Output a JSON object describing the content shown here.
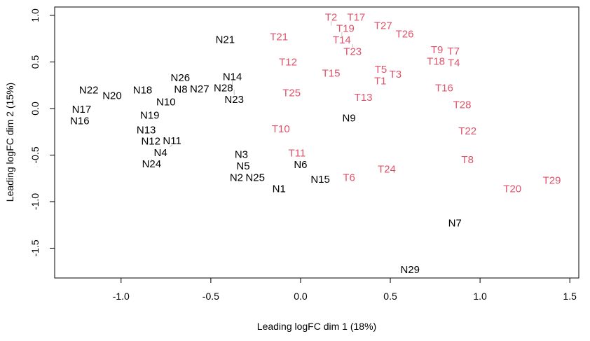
{
  "chart_data": {
    "type": "scatter",
    "marker": "text-labels",
    "xlabel": "Leading logFC dim 1 (18%)",
    "ylabel": "Leading logFC dim 2 (15%)",
    "xlim": [
      -1.37,
      1.55
    ],
    "ylim": [
      -1.82,
      1.09
    ],
    "xticks": [
      -1.0,
      -0.5,
      0.0,
      0.5,
      1.0,
      1.5
    ],
    "xtick_labels": [
      "-1.0",
      "-0.5",
      "0.0",
      "0.5",
      "1.0",
      "1.5"
    ],
    "yticks": [
      -1.5,
      -1.0,
      -0.5,
      0.0,
      0.5,
      1.0
    ],
    "ytick_labels": [
      "-1.5",
      "-1.0",
      "-0.5",
      "0.0",
      "0.5",
      "1.0"
    ],
    "grid": false,
    "colors": {
      "N": "#000000",
      "T": "#DF536B"
    },
    "series": [
      {
        "group": "N",
        "points": [
          {
            "label": "N1",
            "x": -0.12,
            "y": -0.86
          },
          {
            "label": "N2",
            "x": -0.35,
            "y": -0.74
          },
          {
            "label": "N3",
            "x": -0.33,
            "y": -0.52
          },
          {
            "label": "N4",
            "x": -0.78,
            "y": -0.44
          },
          {
            "label": "N5",
            "x": -0.32,
            "y": -0.59
          },
          {
            "label": "N6",
            "x": 0.0,
            "y": -0.59
          },
          {
            "label": "N7",
            "x": 0.86,
            "y": -1.23
          },
          {
            "label": "N8",
            "x": -0.66,
            "y": 0.25
          },
          {
            "label": "N9",
            "x": 0.27,
            "y": -0.1
          },
          {
            "label": "N10",
            "x": -0.75,
            "y": 0.07
          },
          {
            "label": "N11",
            "x": -0.73,
            "y": -0.41
          },
          {
            "label": "N12",
            "x": -0.82,
            "y": -0.38
          },
          {
            "label": "N13",
            "x": -0.86,
            "y": -0.23
          },
          {
            "label": "N14",
            "x": -0.38,
            "y": 0.2
          },
          {
            "label": "N15",
            "x": 0.11,
            "y": -0.76
          },
          {
            "label": "N16",
            "x": -1.23,
            "y": -0.12
          },
          {
            "label": "N17",
            "x": -1.22,
            "y": -0.02
          },
          {
            "label": "N18",
            "x": -0.88,
            "y": 0.2
          },
          {
            "label": "N19",
            "x": -0.84,
            "y": -0.07
          },
          {
            "label": "N20",
            "x": -1.05,
            "y": 0.14
          },
          {
            "label": "N21",
            "x": -0.42,
            "y": 0.74
          },
          {
            "label": "N22",
            "x": -1.18,
            "y": 0.2
          },
          {
            "label": "N23",
            "x": -0.37,
            "y": 0.2
          },
          {
            "label": "N24",
            "x": -0.83,
            "y": -0.54
          },
          {
            "label": "N25",
            "x": -0.26,
            "y": -0.74
          },
          {
            "label": "N26",
            "x": -0.67,
            "y": 0.29
          },
          {
            "label": "N27",
            "x": -0.57,
            "y": 0.21
          },
          {
            "label": "N28",
            "x": -0.43,
            "y": 0.26
          },
          {
            "label": "N29",
            "x": 0.61,
            "y": -1.73
          }
        ]
      },
      {
        "group": "T",
        "points": [
          {
            "label": "T1",
            "x": 0.45,
            "y": 0.34
          },
          {
            "label": "T2",
            "x": 0.17,
            "y": 0.89
          },
          {
            "label": "T3",
            "x": 0.52,
            "y": 0.37
          },
          {
            "label": "T4",
            "x": 0.84,
            "y": 0.52
          },
          {
            "label": "T5",
            "x": 0.45,
            "y": 0.38
          },
          {
            "label": "T6",
            "x": 0.27,
            "y": -0.74
          },
          {
            "label": "T7",
            "x": 0.85,
            "y": 0.59
          },
          {
            "label": "T8",
            "x": 0.93,
            "y": -0.55
          },
          {
            "label": "T9",
            "x": 0.76,
            "y": 0.62
          },
          {
            "label": "T10",
            "x": -0.11,
            "y": -0.22
          },
          {
            "label": "T11",
            "x": -0.02,
            "y": -0.49
          },
          {
            "label": "T12",
            "x": -0.07,
            "y": 0.5
          },
          {
            "label": "T13",
            "x": 0.35,
            "y": 0.12
          },
          {
            "label": "T14",
            "x": 0.23,
            "y": 0.82
          },
          {
            "label": "T15",
            "x": 0.17,
            "y": 0.38
          },
          {
            "label": "T16",
            "x": 0.8,
            "y": 0.22
          },
          {
            "label": "T17",
            "x": 0.31,
            "y": 0.94
          },
          {
            "label": "T18",
            "x": 0.77,
            "y": 0.52
          },
          {
            "label": "T19",
            "x": 0.25,
            "y": 0.83
          },
          {
            "label": "T20",
            "x": 1.18,
            "y": -0.86
          },
          {
            "label": "T21",
            "x": -0.12,
            "y": 0.77
          },
          {
            "label": "T22",
            "x": 0.93,
            "y": -0.24
          },
          {
            "label": "T23",
            "x": 0.29,
            "y": 0.69
          },
          {
            "label": "T24",
            "x": 0.48,
            "y": -0.65
          },
          {
            "label": "T25",
            "x": -0.05,
            "y": 0.17
          },
          {
            "label": "T26",
            "x": 0.58,
            "y": 0.8
          },
          {
            "label": "T27",
            "x": 0.46,
            "y": 0.89
          },
          {
            "label": "T28",
            "x": 0.9,
            "y": 0.04
          },
          {
            "label": "T29",
            "x": 1.4,
            "y": -0.77
          }
        ]
      }
    ]
  }
}
